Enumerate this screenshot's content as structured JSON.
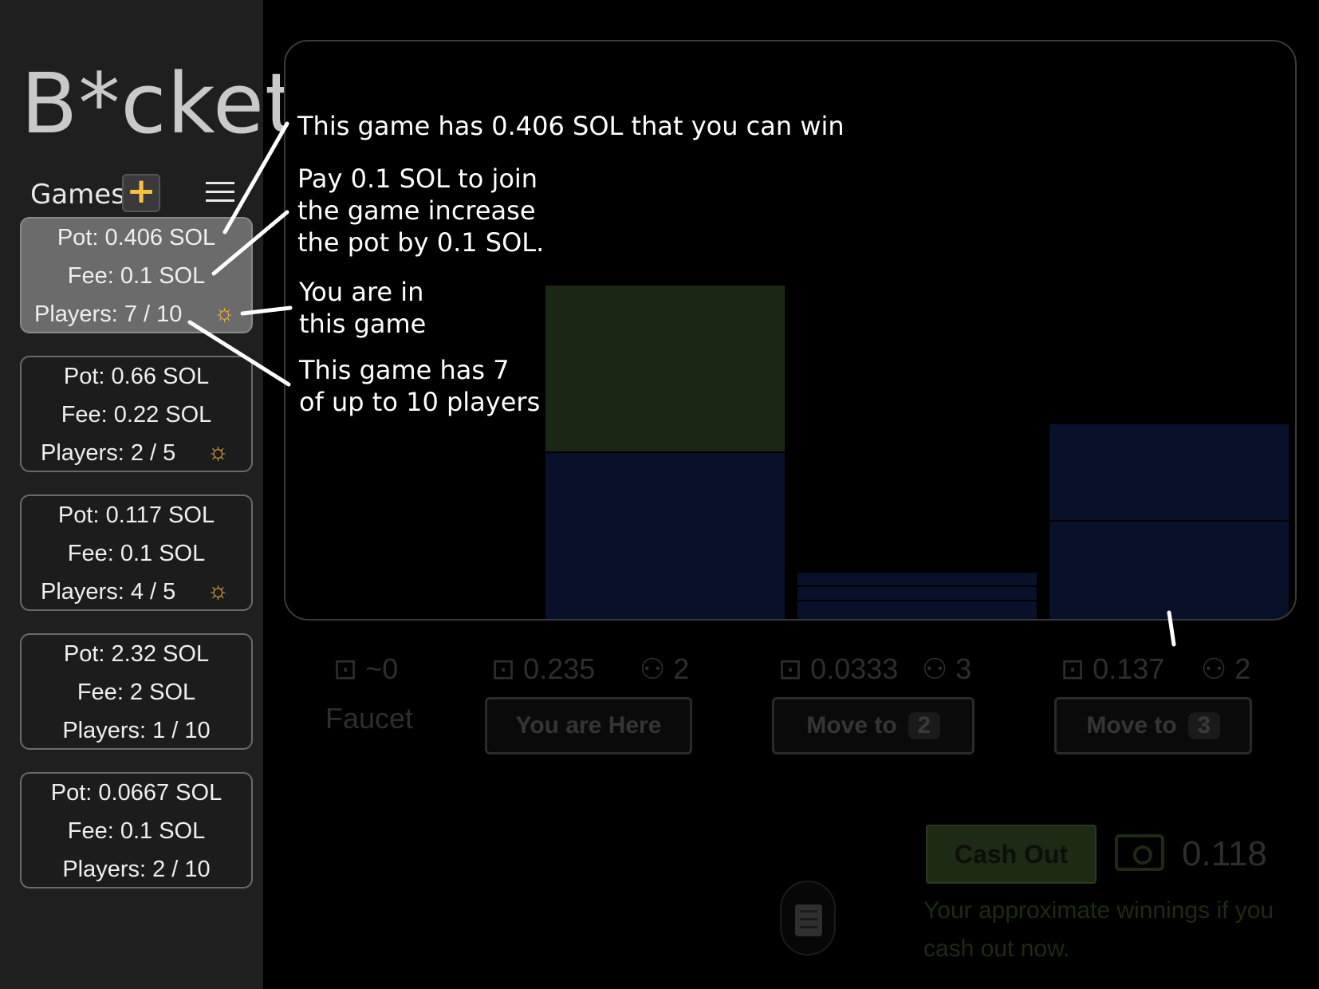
{
  "app": {
    "logo": "B*cket"
  },
  "sidebar": {
    "games_label": "Games",
    "add_label": "+",
    "games": [
      {
        "pot": "Pot: 0.406 SOL",
        "fee": "Fee: 0.1 SOL",
        "players": "Players: 7 / 10",
        "joined": true,
        "active": true
      },
      {
        "pot": "Pot: 0.66 SOL",
        "fee": "Fee: 0.22 SOL",
        "players": "Players: 2 / 5",
        "joined": true,
        "active": false
      },
      {
        "pot": "Pot: 0.117 SOL",
        "fee": "Fee: 0.1 SOL",
        "players": "Players: 4 / 5",
        "joined": true,
        "active": false
      },
      {
        "pot": "Pot: 2.32 SOL",
        "fee": "Fee: 2 SOL",
        "players": "Players: 1 / 10",
        "joined": false,
        "active": false
      },
      {
        "pot": "Pot: 0.0667 SOL",
        "fee": "Fee: 0.1 SOL",
        "players": "Players: 2 / 10",
        "joined": false,
        "active": false
      }
    ]
  },
  "annotations": {
    "pot": "This game has 0.406 SOL that you can win",
    "fee": "Pay 0.1 SOL to join\nthe game increase\nthe pot by 0.1 SOL.",
    "joined": "You are in\nthis game",
    "players": "This game has 7\nof up to 10 players"
  },
  "buckets": {
    "faucet": {
      "amount": "~0",
      "label": "Faucet"
    },
    "items": [
      {
        "amount": "0.235",
        "players": "2",
        "button": "You are Here",
        "button_num": ""
      },
      {
        "amount": "0.0333",
        "players": "3",
        "button": "Move to",
        "button_num": "2"
      },
      {
        "amount": "0.137",
        "players": "2",
        "button": "Move to",
        "button_num": "3"
      }
    ]
  },
  "cashout": {
    "button": "Cash Out",
    "amount": "0.118",
    "note": "Your approximate winnings if you cash out now."
  },
  "colors": {
    "accent": "#f5b13a",
    "bucket_fill": "#08102a",
    "you_fill": "#1b2713"
  }
}
